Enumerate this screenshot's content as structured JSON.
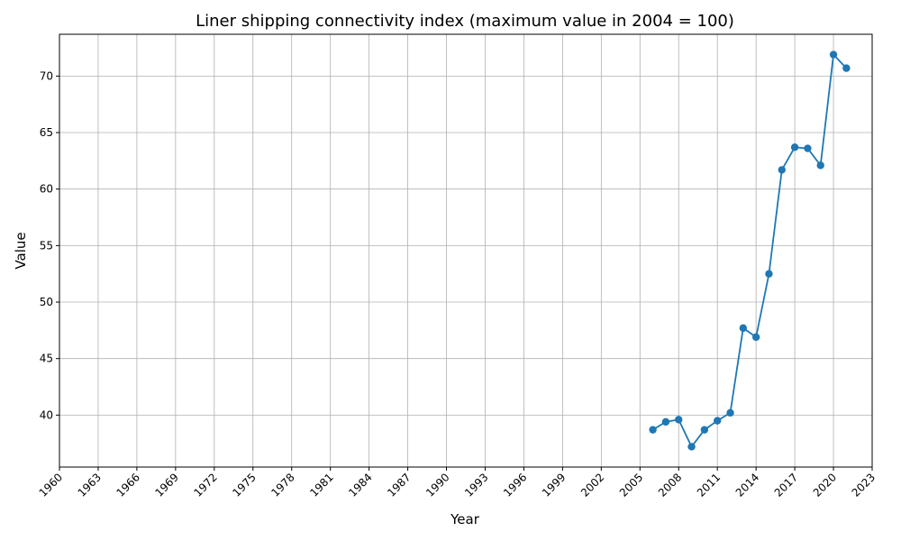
{
  "chart_data": {
    "type": "line",
    "title": "Liner shipping connectivity index (maximum value in 2004 = 100)",
    "xlabel": "Year",
    "ylabel": "Value",
    "xlim": [
      1960,
      2023
    ],
    "ylim": [
      35.4,
      73.7
    ],
    "x_ticks": [
      "1960",
      "1963",
      "1966",
      "1969",
      "1972",
      "1975",
      "1978",
      "1981",
      "1984",
      "1987",
      "1990",
      "1993",
      "1996",
      "1999",
      "2002",
      "2005",
      "2008",
      "2011",
      "2014",
      "2017",
      "2020",
      "2023"
    ],
    "y_ticks": [
      "40",
      "45",
      "50",
      "55",
      "60",
      "65",
      "70"
    ],
    "grid": true,
    "line_color": "#1f77b4",
    "series": [
      {
        "x": [
          2006,
          2007,
          2008,
          2009,
          2010,
          2011,
          2012,
          2013,
          2014,
          2015,
          2016,
          2017,
          2018,
          2019,
          2020,
          2021
        ],
        "values": [
          38.7,
          39.4,
          39.6,
          37.2,
          38.7,
          39.5,
          40.2,
          47.7,
          46.9,
          52.5,
          61.7,
          63.7,
          63.6,
          62.1,
          71.9,
          70.7
        ]
      }
    ]
  }
}
